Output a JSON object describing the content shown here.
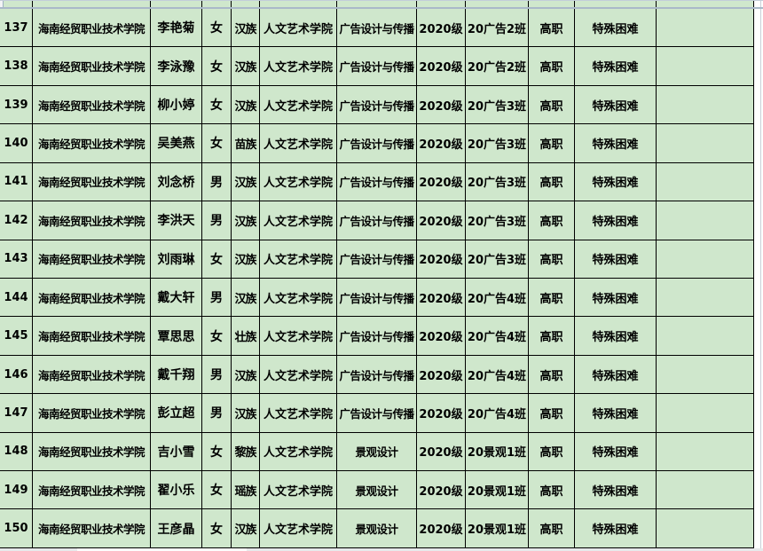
{
  "colors": {
    "cell_fill_green": "#cfe7cc",
    "cell_border_black": "#000000",
    "pane_divider_gray": "#a9b9c9",
    "outside_background": "#ffffff"
  },
  "table": {
    "rows": [
      [
        "137",
        "海南经贸职业技术学院",
        "李艳菊",
        "女",
        "汉族",
        "人文艺术学院",
        "广告设计与传播",
        "2020级",
        "20广告2班",
        "高职",
        "特殊困难",
        ""
      ],
      [
        "138",
        "海南经贸职业技术学院",
        "李泳豫",
        "女",
        "汉族",
        "人文艺术学院",
        "广告设计与传播",
        "2020级",
        "20广告2班",
        "高职",
        "特殊困难",
        ""
      ],
      [
        "139",
        "海南经贸职业技术学院",
        "柳小婷",
        "女",
        "汉族",
        "人文艺术学院",
        "广告设计与传播",
        "2020级",
        "20广告3班",
        "高职",
        "特殊困难",
        ""
      ],
      [
        "140",
        "海南经贸职业技术学院",
        "吴美燕",
        "女",
        "苗族",
        "人文艺术学院",
        "广告设计与传播",
        "2020级",
        "20广告3班",
        "高职",
        "特殊困难",
        ""
      ],
      [
        "141",
        "海南经贸职业技术学院",
        "刘念桥",
        "男",
        "汉族",
        "人文艺术学院",
        "广告设计与传播",
        "2020级",
        "20广告3班",
        "高职",
        "特殊困难",
        ""
      ],
      [
        "142",
        "海南经贸职业技术学院",
        "李洪天",
        "男",
        "汉族",
        "人文艺术学院",
        "广告设计与传播",
        "2020级",
        "20广告3班",
        "高职",
        "特殊困难",
        ""
      ],
      [
        "143",
        "海南经贸职业技术学院",
        "刘雨琳",
        "女",
        "汉族",
        "人文艺术学院",
        "广告设计与传播",
        "2020级",
        "20广告3班",
        "高职",
        "特殊困难",
        ""
      ],
      [
        "144",
        "海南经贸职业技术学院",
        "戴大轩",
        "男",
        "汉族",
        "人文艺术学院",
        "广告设计与传播",
        "2020级",
        "20广告4班",
        "高职",
        "特殊困难",
        ""
      ],
      [
        "145",
        "海南经贸职业技术学院",
        "覃思思",
        "女",
        "壮族",
        "人文艺术学院",
        "广告设计与传播",
        "2020级",
        "20广告4班",
        "高职",
        "特殊困难",
        ""
      ],
      [
        "146",
        "海南经贸职业技术学院",
        "戴千翔",
        "男",
        "汉族",
        "人文艺术学院",
        "广告设计与传播",
        "2020级",
        "20广告4班",
        "高职",
        "特殊困难",
        ""
      ],
      [
        "147",
        "海南经贸职业技术学院",
        "彭立超",
        "男",
        "汉族",
        "人文艺术学院",
        "广告设计与传播",
        "2020级",
        "20广告4班",
        "高职",
        "特殊困难",
        ""
      ],
      [
        "148",
        "海南经贸职业技术学院",
        "吉小雪",
        "女",
        "黎族",
        "人文艺术学院",
        "景观设计",
        "2020级",
        "20景观1班",
        "高职",
        "特殊困难",
        ""
      ],
      [
        "149",
        "海南经贸职业技术学院",
        "翟小乐",
        "女",
        "瑶族",
        "人文艺术学院",
        "景观设计",
        "2020级",
        "20景观1班",
        "高职",
        "特殊困难",
        ""
      ],
      [
        "150",
        "海南经贸职业技术学院",
        "王彦晶",
        "女",
        "汉族",
        "人文艺术学院",
        "景观设计",
        "2020级",
        "20景观1班",
        "高职",
        "特殊困难",
        ""
      ]
    ]
  }
}
